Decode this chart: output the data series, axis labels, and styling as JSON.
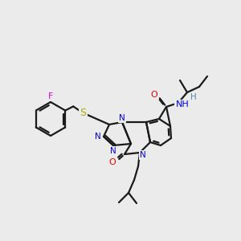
{
  "bg_color": "#ebebeb",
  "bond_color": "#1a1a1a",
  "lw": 1.6,
  "atom_colors": {
    "F": "#dd00dd",
    "S": "#aaaa00",
    "N": "#0000ee",
    "O": "#ee0000",
    "H": "#5588aa"
  },
  "font_size": 7.5
}
